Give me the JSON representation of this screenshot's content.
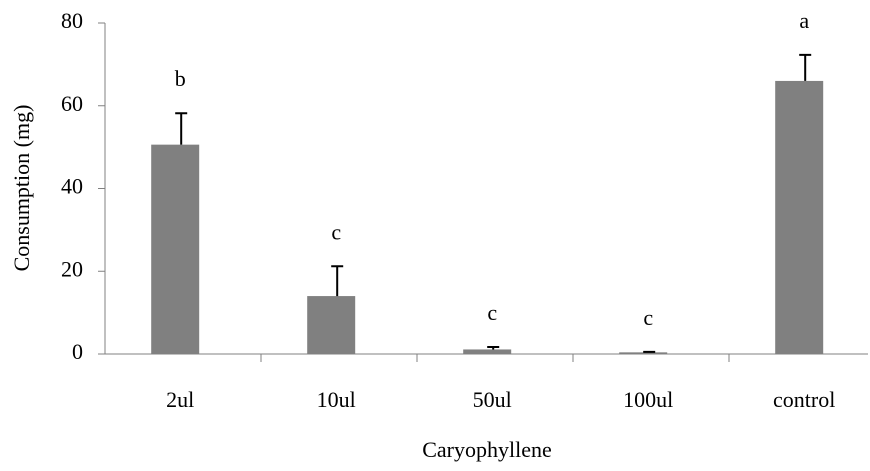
{
  "chart_data": {
    "type": "bar",
    "xlabel": "Caryophyllene",
    "ylabel": "Consumption (mg)",
    "categories": [
      "2ul",
      "10ul",
      "50ul",
      "100ul",
      "control"
    ],
    "values": [
      50.6,
      14,
      1.1,
      0.4,
      66
    ],
    "errors": [
      7.6,
      7.2,
      0.6,
      0.1,
      6.3
    ],
    "annotations": [
      "b",
      "c",
      "c",
      "c",
      "a"
    ],
    "color": "#808080",
    "ylim": [
      0,
      80
    ],
    "yticks": [
      0,
      20,
      40,
      60,
      80
    ],
    "grid": false
  }
}
